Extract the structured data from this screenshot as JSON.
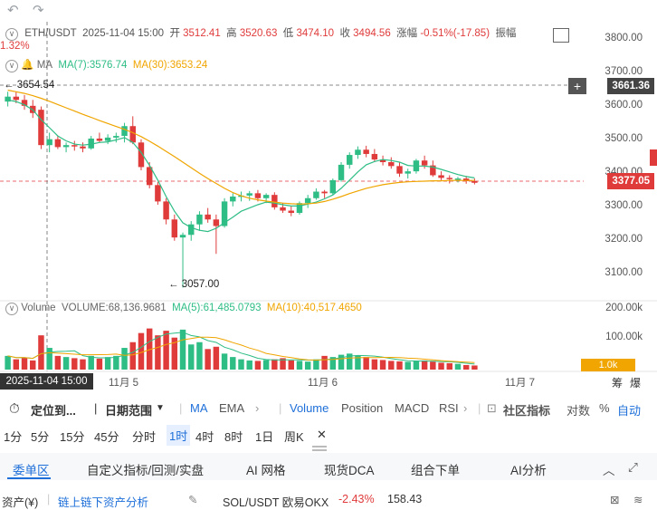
{
  "topbar": {
    "back_icon": "undo-icon",
    "forward_icon": "redo-icon"
  },
  "ohlc": {
    "symbol": "ETH/USDT",
    "datetime": "2025-11-04 15:00",
    "open_label": "开",
    "open": "3512.41",
    "high_label": "高",
    "high": "3520.63",
    "low_label": "低",
    "low": "3474.10",
    "close_label": "收",
    "close": "3494.56",
    "change_label": "涨幅",
    "change": "-0.51%(-17.85)",
    "amplitude_label": "振幅",
    "amplitude": "1.32%"
  },
  "ma": {
    "label": "MA",
    "ma7": "MA(7):3576.74",
    "ma30": "MA(30):3653.24"
  },
  "volume": {
    "label": "Volume",
    "value": "VOLUME:68,136.9681",
    "ma5": "MA(5):61,485.0793",
    "ma10": "MA(10):40,517.4650"
  },
  "annotations": {
    "high_marker": "← 3654.54",
    "low_marker": "← 3057.00"
  },
  "price_axis": {
    "ticks": [
      "3800.00",
      "3700.00",
      "3600.00",
      "3500.00",
      "3400.00",
      "3300.00",
      "3200.00",
      "3100.00"
    ],
    "cursor_price": "3661.36",
    "last_price": "3377.05"
  },
  "volume_axis": {
    "ticks": [
      "200.00k",
      "100.00k"
    ],
    "tag": "1.0k"
  },
  "time_axis": {
    "cursor": "2025-11-04 15:00",
    "ticks": [
      "11月 5",
      "11月 6",
      "11月 7"
    ]
  },
  "side_labels": {
    "chou": "筹",
    "bao": "爆"
  },
  "toolbar": {
    "locate": "定位到...",
    "date_range": "日期范围",
    "indicators_main": [
      "MA",
      "EMA"
    ],
    "indicators_sub": [
      "Volume",
      "Position",
      "MACD",
      "RSI"
    ],
    "community": "社区指标",
    "compare": "对数",
    "percent": "%",
    "auto": "自动"
  },
  "timeframes": [
    "1分",
    "5分",
    "15分",
    "45分",
    "分时",
    "1时",
    "4时",
    "8时",
    "1日",
    "周K"
  ],
  "active_timeframe": "1时",
  "tabs": [
    "委单区",
    "自定义指标/回测/实盘",
    "AI 网格",
    "现货DCA",
    "组合下单",
    "AI分析"
  ],
  "statusbar": {
    "assets": "资产(¥)",
    "onchain": "链上链下资产分析",
    "pair": "SOL/USDT 欧易OKX",
    "pct": "-2.43%",
    "price": "158.43"
  },
  "colors": {
    "up": "#2ebd85",
    "down": "#e03b3b",
    "ma7": "#2ebd85",
    "ma30": "#f0a500",
    "accent": "#1e6fd9"
  },
  "chart_data": {
    "type": "candlestick",
    "series_name": "ETH/USDT 1H",
    "ylim": [
      3050,
      3830
    ],
    "candles": [
      [
        3625,
        3655,
        3610,
        3640
      ],
      [
        3640,
        3654,
        3620,
        3630
      ],
      [
        3630,
        3645,
        3600,
        3612
      ],
      [
        3612,
        3630,
        3575,
        3590
      ],
      [
        3600,
        3610,
        3480,
        3492
      ],
      [
        3492,
        3530,
        3470,
        3510
      ],
      [
        3510,
        3520,
        3480,
        3486
      ],
      [
        3486,
        3500,
        3470,
        3492
      ],
      [
        3492,
        3505,
        3475,
        3488
      ],
      [
        3488,
        3500,
        3470,
        3482
      ],
      [
        3482,
        3520,
        3478,
        3512
      ],
      [
        3512,
        3530,
        3500,
        3505
      ],
      [
        3505,
        3525,
        3495,
        3515
      ],
      [
        3515,
        3530,
        3500,
        3520
      ],
      [
        3520,
        3560,
        3500,
        3550
      ],
      [
        3550,
        3580,
        3495,
        3500
      ],
      [
        3500,
        3510,
        3415,
        3425
      ],
      [
        3425,
        3440,
        3360,
        3370
      ],
      [
        3370,
        3380,
        3310,
        3320
      ],
      [
        3320,
        3330,
        3250,
        3265
      ],
      [
        3265,
        3280,
        3200,
        3210
      ],
      [
        3210,
        3225,
        3057,
        3218
      ],
      [
        3218,
        3260,
        3200,
        3250
      ],
      [
        3250,
        3290,
        3230,
        3280
      ],
      [
        3280,
        3300,
        3255,
        3265
      ],
      [
        3265,
        3280,
        3160,
        3245
      ],
      [
        3245,
        3330,
        3240,
        3320
      ],
      [
        3320,
        3345,
        3305,
        3335
      ],
      [
        3335,
        3350,
        3320,
        3338
      ],
      [
        3338,
        3352,
        3322,
        3345
      ],
      [
        3345,
        3355,
        3320,
        3330
      ],
      [
        3330,
        3345,
        3315,
        3340
      ],
      [
        3340,
        3348,
        3295,
        3302
      ],
      [
        3302,
        3315,
        3285,
        3292
      ],
      [
        3292,
        3305,
        3275,
        3285
      ],
      [
        3285,
        3320,
        3280,
        3315
      ],
      [
        3315,
        3340,
        3300,
        3330
      ],
      [
        3330,
        3360,
        3325,
        3350
      ],
      [
        3350,
        3355,
        3330,
        3345
      ],
      [
        3345,
        3390,
        3340,
        3385
      ],
      [
        3385,
        3440,
        3380,
        3432
      ],
      [
        3432,
        3470,
        3420,
        3462
      ],
      [
        3462,
        3488,
        3450,
        3478
      ],
      [
        3478,
        3490,
        3455,
        3465
      ],
      [
        3465,
        3480,
        3440,
        3448
      ],
      [
        3448,
        3460,
        3430,
        3440
      ],
      [
        3440,
        3455,
        3420,
        3428
      ],
      [
        3428,
        3440,
        3395,
        3405
      ],
      [
        3405,
        3420,
        3390,
        3412
      ],
      [
        3412,
        3450,
        3405,
        3445
      ],
      [
        3445,
        3460,
        3420,
        3430
      ],
      [
        3430,
        3445,
        3395,
        3400
      ],
      [
        3400,
        3412,
        3385,
        3392
      ],
      [
        3392,
        3400,
        3375,
        3388
      ],
      [
        3388,
        3395,
        3378,
        3390
      ],
      [
        3390,
        3398,
        3374,
        3382
      ],
      [
        3382,
        3390,
        3372,
        3377
      ]
    ],
    "ma7": [
      3630,
      3625,
      3615,
      3600,
      3570,
      3545,
      3520,
      3505,
      3495,
      3492,
      3495,
      3500,
      3502,
      3508,
      3515,
      3500,
      3470,
      3430,
      3385,
      3335,
      3290,
      3255,
      3240,
      3232,
      3228,
      3238,
      3255,
      3272,
      3290,
      3300,
      3310,
      3318,
      3315,
      3310,
      3306,
      3306,
      3312,
      3318,
      3328,
      3340,
      3360,
      3385,
      3410,
      3432,
      3442,
      3448,
      3445,
      3440,
      3430,
      3428,
      3428,
      3425,
      3418,
      3410,
      3402,
      3396,
      3392
    ],
    "ma30": [
      3660,
      3655,
      3650,
      3643,
      3635,
      3626,
      3616,
      3606,
      3596,
      3586,
      3577,
      3567,
      3558,
      3549,
      3540,
      3530,
      3518,
      3504,
      3489,
      3473,
      3457,
      3440,
      3423,
      3406,
      3390,
      3375,
      3360,
      3347,
      3337,
      3330,
      3325,
      3321,
      3318,
      3315,
      3313,
      3312,
      3313,
      3315,
      3320,
      3327,
      3335,
      3344,
      3352,
      3360,
      3366,
      3371,
      3375,
      3378,
      3380,
      3381,
      3382,
      3383,
      3383,
      3384,
      3384,
      3384,
      3384
    ],
    "volumes": [
      60,
      45,
      52,
      40,
      150,
      95,
      60,
      55,
      50,
      45,
      60,
      48,
      55,
      60,
      95,
      120,
      160,
      180,
      150,
      170,
      140,
      175,
      110,
      120,
      90,
      100,
      70,
      55,
      45,
      40,
      38,
      42,
      45,
      50,
      40,
      38,
      35,
      45,
      60,
      55,
      65,
      70,
      60,
      55,
      45,
      42,
      38,
      36,
      34,
      38,
      40,
      35,
      30,
      28,
      25,
      20,
      18
    ],
    "vol_ylim": [
      0,
      230
    ]
  }
}
